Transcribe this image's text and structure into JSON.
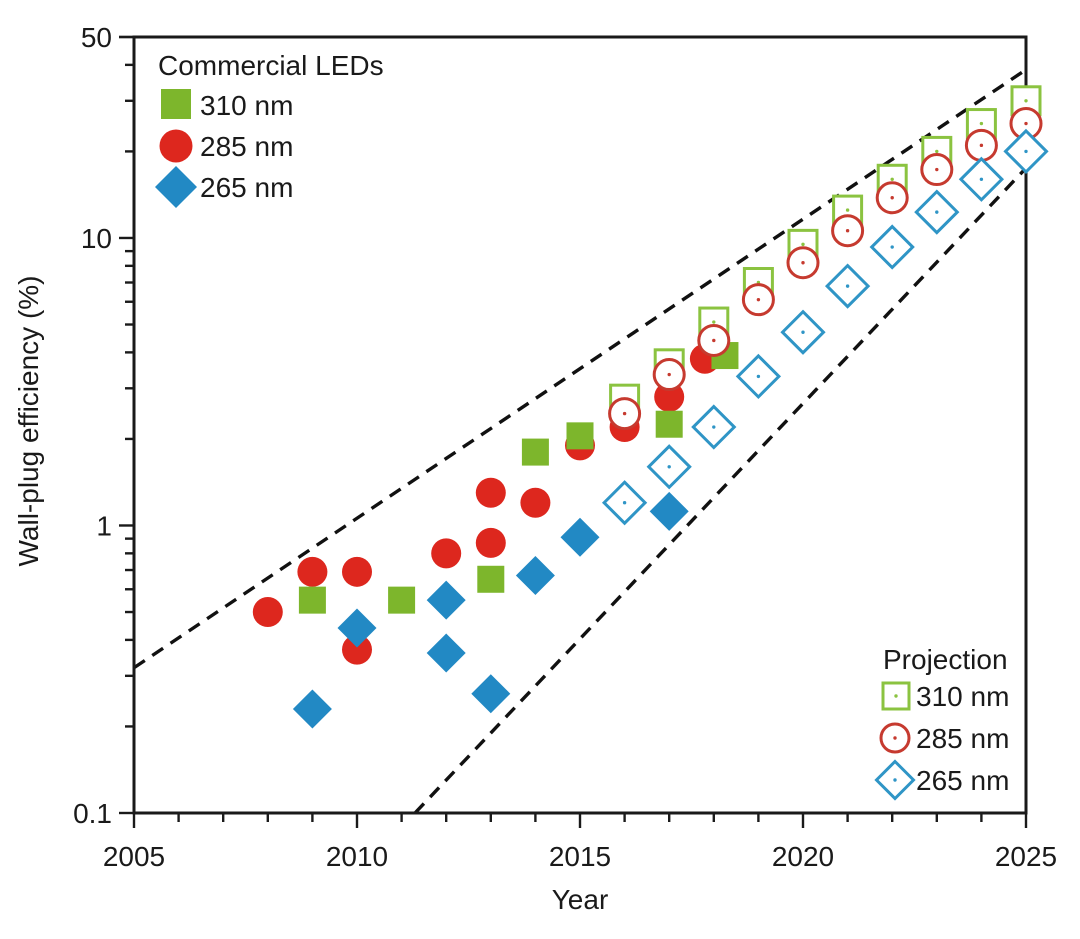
{
  "axes": {
    "x_title": "Year",
    "y_title": "Wall-plug efficiency (%)",
    "x_major_ticks": [
      {
        "value": 2005,
        "label": "2005"
      },
      {
        "value": 2010,
        "label": "2010"
      },
      {
        "value": 2015,
        "label": "2015"
      },
      {
        "value": 2020,
        "label": "2020"
      },
      {
        "value": 2025,
        "label": "2025"
      }
    ],
    "y_major_ticks": [
      {
        "value": 0.1,
        "label": "0.1"
      },
      {
        "value": 1,
        "label": "1"
      },
      {
        "value": 10,
        "label": "10"
      },
      {
        "value": 50,
        "label": "50"
      }
    ]
  },
  "legend_commercial": {
    "title": "Commercial LEDs",
    "items": [
      {
        "label": "310 nm",
        "marker": "square",
        "fill": "filled",
        "color": "#7db62c"
      },
      {
        "label": "285 nm",
        "marker": "circle",
        "fill": "filled",
        "color": "#dd271e"
      },
      {
        "label": "265 nm",
        "marker": "diamond",
        "fill": "filled",
        "color": "#2289c4"
      }
    ]
  },
  "legend_projection": {
    "title": "Projection",
    "items": [
      {
        "label": "310 nm",
        "marker": "square",
        "fill": "open",
        "color": "#8bc340"
      },
      {
        "label": "285 nm",
        "marker": "circle",
        "fill": "open",
        "color": "#c63a2f"
      },
      {
        "label": "265 nm",
        "marker": "diamond",
        "fill": "open",
        "color": "#2f95c6"
      }
    ]
  },
  "chart_data": {
    "type": "scatter",
    "title": "",
    "xlabel": "Year",
    "ylabel": "Wall-plug efficiency (%)",
    "x_range": [
      2005,
      2025
    ],
    "x_minor_tick_step": 1,
    "y_scale": "log",
    "y_range": [
      0.1,
      50
    ],
    "grid": false,
    "series": [
      {
        "name": "Commercial LEDs 285 nm",
        "marker": "circle",
        "fill": "filled",
        "color": "#dd271e",
        "points": [
          [
            2008,
            0.5
          ],
          [
            2009,
            0.69
          ],
          [
            2010,
            0.69
          ],
          [
            2010,
            0.37
          ],
          [
            2012,
            0.8
          ],
          [
            2013,
            1.3
          ],
          [
            2013,
            0.87
          ],
          [
            2014,
            1.2
          ],
          [
            2015,
            1.9
          ],
          [
            2016,
            2.2
          ],
          [
            2017,
            2.8
          ],
          [
            2017.8,
            3.8
          ]
        ]
      },
      {
        "name": "Commercial LEDs 310 nm",
        "marker": "square",
        "fill": "filled",
        "color": "#7db62c",
        "points": [
          [
            2009,
            0.55
          ],
          [
            2011,
            0.55
          ],
          [
            2013,
            0.65
          ],
          [
            2014,
            1.8
          ],
          [
            2015,
            2.05
          ],
          [
            2017,
            2.25
          ],
          [
            2018.25,
            3.9
          ]
        ]
      },
      {
        "name": "Commercial LEDs 265 nm",
        "marker": "diamond",
        "fill": "filled",
        "color": "#2289c4",
        "points": [
          [
            2009,
            0.23
          ],
          [
            2010,
            0.44
          ],
          [
            2012,
            0.55
          ],
          [
            2012,
            0.36
          ],
          [
            2013,
            0.26
          ],
          [
            2014,
            0.67
          ],
          [
            2015,
            0.91
          ],
          [
            2017,
            1.12
          ]
        ]
      },
      {
        "name": "Projection 310 nm",
        "marker": "square",
        "fill": "open",
        "color": "#8bc340",
        "points": [
          [
            2016,
            2.75
          ],
          [
            2017,
            3.65
          ],
          [
            2018,
            5.1
          ],
          [
            2019,
            7.0
          ],
          [
            2020,
            9.5
          ],
          [
            2021,
            12.5
          ],
          [
            2022,
            16
          ],
          [
            2023,
            20
          ],
          [
            2024,
            25
          ],
          [
            2025,
            30
          ]
        ]
      },
      {
        "name": "Projection 285 nm",
        "marker": "circle",
        "fill": "open",
        "color": "#c63a2f",
        "points": [
          [
            2016,
            2.45
          ],
          [
            2017,
            3.35
          ],
          [
            2018,
            4.4
          ],
          [
            2019,
            6.1
          ],
          [
            2020,
            8.2
          ],
          [
            2021,
            10.6
          ],
          [
            2022,
            13.8
          ],
          [
            2023,
            17.3
          ],
          [
            2024,
            21
          ],
          [
            2025,
            25
          ]
        ]
      },
      {
        "name": "Projection 265 nm",
        "marker": "diamond",
        "fill": "open",
        "color": "#2f95c6",
        "points": [
          [
            2016,
            1.2
          ],
          [
            2017,
            1.6
          ],
          [
            2018,
            2.2
          ],
          [
            2019,
            3.3
          ],
          [
            2020,
            4.7
          ],
          [
            2021,
            6.8
          ],
          [
            2022,
            9.3
          ],
          [
            2023,
            12.3
          ],
          [
            2024,
            16
          ],
          [
            2025,
            20
          ]
        ]
      }
    ],
    "trend_lines": [
      {
        "name": "upper-bound",
        "style": "dashed",
        "color": "#111111",
        "from": [
          2005,
          0.32
        ],
        "to": [
          2025,
          38.5
        ]
      },
      {
        "name": "lower-bound",
        "style": "dashed",
        "color": "#111111",
        "from": [
          2011.3,
          0.1
        ],
        "to": [
          2025,
          17.5
        ]
      }
    ]
  }
}
